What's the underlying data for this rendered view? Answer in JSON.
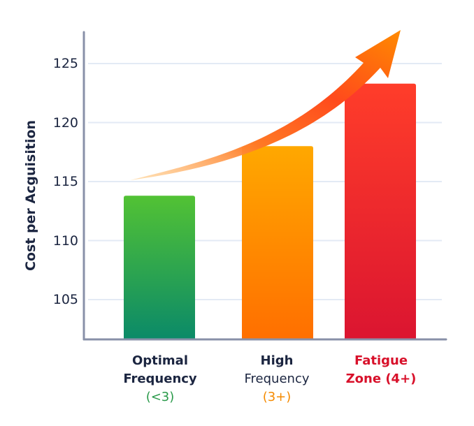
{
  "chart_data": {
    "type": "bar",
    "title": "",
    "xlabel": "",
    "ylabel": "Cost per Acguisition",
    "ylim": [
      101.6,
      128
    ],
    "yticks": [
      105,
      110,
      115,
      120,
      125
    ],
    "grid": true,
    "legend": null,
    "categories": [
      "Optimal Frequency (<3)",
      "High Frequency (3+)",
      "Fatigue Zone (4+)"
    ],
    "values": [
      113.8,
      118.0,
      123.3
    ],
    "bar_colors": [
      {
        "top": "#52c234",
        "bottom": "#0b8a68"
      },
      {
        "top": "#ffa800",
        "bottom": "#ff6f00"
      },
      {
        "top": "#ff3d2a",
        "bottom": "#db1530"
      }
    ],
    "annotations": [
      "upward trend arrow (orange-red gradient) rising over bars"
    ]
  },
  "axis": {
    "ylabel": "Cost per Acguisition",
    "ticks": [
      "125",
      "120",
      "115",
      "110",
      "105"
    ]
  },
  "categories": [
    {
      "line1": "Optimal",
      "line2": "Frequency",
      "line3": "(<3)",
      "line1_color": "#1b2540",
      "line2_color": "#1b2540",
      "line3_color": "#2a9a4a"
    },
    {
      "line1": "High",
      "line2": "Frequency",
      "line3": "(3+)",
      "line1_color": "#1b2540",
      "line2_color": "#1b2540",
      "line3_color": "#f58a00"
    },
    {
      "line1": "Fatigue",
      "line2": "Zone (4+)",
      "line3": "",
      "line1_color": "#d8102a",
      "line2_color": "#d8102a",
      "line3_color": "#d8102a"
    }
  ],
  "colors": {
    "axis": "#8890a8",
    "grid": "#e3eaf5",
    "text": "#1b2540"
  }
}
